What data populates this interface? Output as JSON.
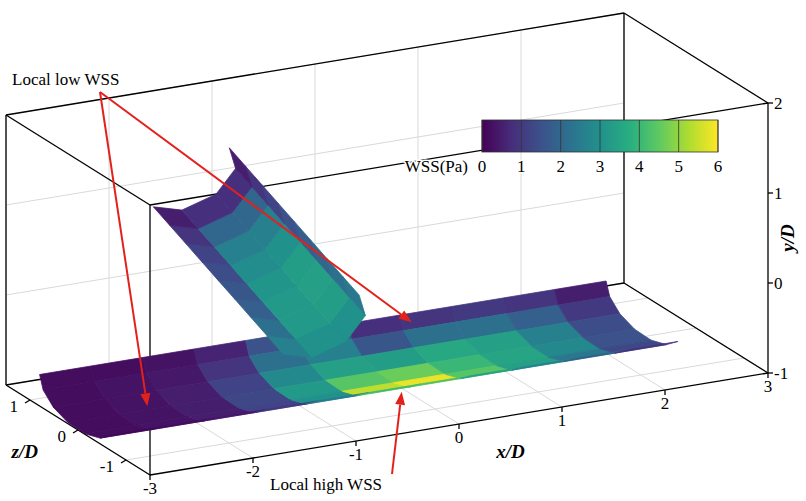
{
  "chart_data": {
    "type": "surface",
    "xlabel": "x/D",
    "ylabel": "y/D",
    "zlabel": "z/D",
    "xlim": [
      -3,
      3
    ],
    "ylim": [
      -1,
      2
    ],
    "zlim": [
      -1.5,
      1.5
    ],
    "xticks": [
      -3,
      -2,
      -1,
      0,
      1,
      2,
      3
    ],
    "yticks": [
      -1,
      0,
      1,
      2
    ],
    "zticks": [
      -1,
      0,
      1
    ],
    "grid": true,
    "colorbar_label": "WSS(Pa)",
    "colorbar_range": [
      0,
      6
    ],
    "colorbar_ticks": [
      0,
      1,
      2,
      3,
      4,
      5,
      6
    ],
    "annotations": [
      {
        "text": "Local low WSS"
      },
      {
        "text": "Local high WSS"
      }
    ],
    "main_x": [
      -3,
      -2.5,
      -2,
      -1.5,
      -1,
      -0.5,
      0,
      0.5,
      1,
      1.5,
      2,
      2.5
    ],
    "main_angles": [
      90,
      65,
      40,
      15,
      -10,
      -35,
      -60
    ],
    "main_axis_y": -0.65,
    "main_radius_y": 0.35,
    "main_radius_z": 0.8,
    "main_values": [
      [
        0.2,
        0.2,
        0.3,
        0.6,
        1.5,
        1.8,
        0.8,
        0.9,
        1.0,
        0.9,
        0.5
      ],
      [
        0.2,
        0.3,
        0.4,
        0.9,
        2.2,
        2.6,
        1.6,
        2.2,
        2.2,
        1.8,
        1.0
      ],
      [
        0.2,
        0.3,
        0.5,
        1.2,
        2.8,
        3.4,
        3.3,
        3.6,
        3.4,
        2.6,
        1.4
      ],
      [
        0.2,
        0.3,
        0.5,
        1.3,
        3.2,
        4.4,
        4.6,
        4.0,
        3.5,
        2.8,
        1.5
      ],
      [
        0.2,
        0.3,
        0.5,
        1.2,
        3.0,
        5.4,
        5.8,
        4.4,
        3.4,
        2.4,
        1.3
      ],
      [
        0.1,
        0.2,
        0.4,
        1.0,
        2.4,
        4.0,
        4.2,
        3.4,
        2.6,
        1.8,
        0.9
      ]
    ],
    "branch_start": [
      -0.5,
      -0.4,
      0.3
    ],
    "branch_end": [
      -1.9,
      1.6,
      0
    ],
    "branch_radius": 0.45,
    "branch_angles": [
      -90,
      -45,
      0,
      45,
      90
    ],
    "branch_values": [
      [
        2.6,
        3.0,
        3.0,
        2.4
      ],
      [
        2.2,
        3.2,
        3.3,
        2.2
      ],
      [
        1.8,
        3.2,
        3.4,
        2.0
      ],
      [
        1.6,
        3.1,
        3.3,
        1.8
      ],
      [
        1.4,
        2.9,
        3.0,
        1.5
      ],
      [
        1.2,
        2.6,
        2.6,
        1.2
      ],
      [
        0.9,
        2.0,
        2.0,
        0.9
      ],
      [
        0.5,
        0.8,
        0.8,
        0.5
      ]
    ]
  }
}
